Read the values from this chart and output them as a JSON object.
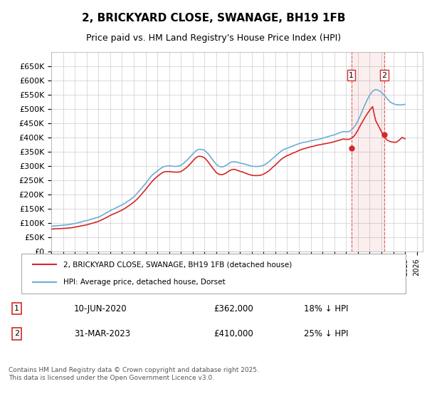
{
  "title": "2, BRICKYARD CLOSE, SWANAGE, BH19 1FB",
  "subtitle": "Price paid vs. HM Land Registry's House Price Index (HPI)",
  "ylabel": "",
  "ylim": [
    0,
    700000
  ],
  "yticks": [
    0,
    50000,
    100000,
    150000,
    200000,
    250000,
    300000,
    350000,
    400000,
    450000,
    500000,
    550000,
    600000,
    650000
  ],
  "xlim_start": 1995.0,
  "xlim_end": 2026.5,
  "hpi_color": "#6baed6",
  "price_color": "#d62728",
  "background_color": "#ffffff",
  "grid_color": "#cccccc",
  "transaction1_label": "1",
  "transaction1_date": "10-JUN-2020",
  "transaction1_price": "£362,000",
  "transaction1_hpi": "18% ↓ HPI",
  "transaction1_year": 2020.44,
  "transaction1_value": 362000,
  "transaction2_label": "2",
  "transaction2_date": "31-MAR-2023",
  "transaction2_price": "£410,000",
  "transaction2_hpi": "25% ↓ HPI",
  "transaction2_year": 2023.25,
  "transaction2_value": 410000,
  "legend_label1": "2, BRICKYARD CLOSE, SWANAGE, BH19 1FB (detached house)",
  "legend_label2": "HPI: Average price, detached house, Dorset",
  "footer": "Contains HM Land Registry data © Crown copyright and database right 2025.\nThis data is licensed under the Open Government Licence v3.0.",
  "hpi_data_x": [
    1995.0,
    1995.25,
    1995.5,
    1995.75,
    1996.0,
    1996.25,
    1996.5,
    1996.75,
    1997.0,
    1997.25,
    1997.5,
    1997.75,
    1998.0,
    1998.25,
    1998.5,
    1998.75,
    1999.0,
    1999.25,
    1999.5,
    1999.75,
    2000.0,
    2000.25,
    2000.5,
    2000.75,
    2001.0,
    2001.25,
    2001.5,
    2001.75,
    2002.0,
    2002.25,
    2002.5,
    2002.75,
    2003.0,
    2003.25,
    2003.5,
    2003.75,
    2004.0,
    2004.25,
    2004.5,
    2004.75,
    2005.0,
    2005.25,
    2005.5,
    2005.75,
    2006.0,
    2006.25,
    2006.5,
    2006.75,
    2007.0,
    2007.25,
    2007.5,
    2007.75,
    2008.0,
    2008.25,
    2008.5,
    2008.75,
    2009.0,
    2009.25,
    2009.5,
    2009.75,
    2010.0,
    2010.25,
    2010.5,
    2010.75,
    2011.0,
    2011.25,
    2011.5,
    2011.75,
    2012.0,
    2012.25,
    2012.5,
    2012.75,
    2013.0,
    2013.25,
    2013.5,
    2013.75,
    2014.0,
    2014.25,
    2014.5,
    2014.75,
    2015.0,
    2015.25,
    2015.5,
    2015.75,
    2016.0,
    2016.25,
    2016.5,
    2016.75,
    2017.0,
    2017.25,
    2017.5,
    2017.75,
    2018.0,
    2018.25,
    2018.5,
    2018.75,
    2019.0,
    2019.25,
    2019.5,
    2019.75,
    2020.0,
    2020.25,
    2020.5,
    2020.75,
    2021.0,
    2021.25,
    2021.5,
    2021.75,
    2022.0,
    2022.25,
    2022.5,
    2022.75,
    2023.0,
    2023.25,
    2023.5,
    2023.75,
    2024.0,
    2024.25,
    2024.5,
    2024.75,
    2025.0
  ],
  "hpi_data_y": [
    88000,
    89000,
    90000,
    91000,
    92000,
    93000,
    94000,
    96000,
    98000,
    100000,
    103000,
    106000,
    108000,
    111000,
    114000,
    117000,
    120000,
    125000,
    131000,
    137000,
    143000,
    148000,
    153000,
    158000,
    163000,
    169000,
    176000,
    183000,
    191000,
    202000,
    214000,
    226000,
    238000,
    252000,
    265000,
    274000,
    282000,
    290000,
    297000,
    299000,
    300000,
    299000,
    298000,
    299000,
    302000,
    310000,
    319000,
    330000,
    342000,
    352000,
    358000,
    358000,
    355000,
    345000,
    332000,
    318000,
    305000,
    298000,
    296000,
    300000,
    307000,
    313000,
    315000,
    313000,
    310000,
    308000,
    305000,
    302000,
    299000,
    298000,
    298000,
    299000,
    302000,
    308000,
    316000,
    325000,
    334000,
    343000,
    352000,
    358000,
    362000,
    366000,
    370000,
    374000,
    378000,
    381000,
    383000,
    385000,
    388000,
    390000,
    392000,
    394000,
    397000,
    400000,
    403000,
    406000,
    409000,
    413000,
    417000,
    420000,
    420000,
    420000,
    428000,
    440000,
    458000,
    480000,
    505000,
    528000,
    548000,
    562000,
    568000,
    565000,
    558000,
    547000,
    535000,
    524000,
    518000,
    515000,
    514000,
    514000,
    516000
  ],
  "price_data_x": [
    1995.0,
    1995.25,
    1995.5,
    1995.75,
    1996.0,
    1996.25,
    1996.5,
    1996.75,
    1997.0,
    1997.25,
    1997.5,
    1997.75,
    1998.0,
    1998.25,
    1998.5,
    1998.75,
    1999.0,
    1999.25,
    1999.5,
    1999.75,
    2000.0,
    2000.25,
    2000.5,
    2000.75,
    2001.0,
    2001.25,
    2001.5,
    2001.75,
    2002.0,
    2002.25,
    2002.5,
    2002.75,
    2003.0,
    2003.25,
    2003.5,
    2003.75,
    2004.0,
    2004.25,
    2004.5,
    2004.75,
    2005.0,
    2005.25,
    2005.5,
    2005.75,
    2006.0,
    2006.25,
    2006.5,
    2006.75,
    2007.0,
    2007.25,
    2007.5,
    2007.75,
    2008.0,
    2008.25,
    2008.5,
    2008.75,
    2009.0,
    2009.25,
    2009.5,
    2009.75,
    2010.0,
    2010.25,
    2010.5,
    2010.75,
    2011.0,
    2011.25,
    2011.5,
    2011.75,
    2012.0,
    2012.25,
    2012.5,
    2012.75,
    2013.0,
    2013.25,
    2013.5,
    2013.75,
    2014.0,
    2014.25,
    2014.5,
    2014.75,
    2015.0,
    2015.25,
    2015.5,
    2015.75,
    2016.0,
    2016.25,
    2016.5,
    2016.75,
    2017.0,
    2017.25,
    2017.5,
    2017.75,
    2018.0,
    2018.25,
    2018.5,
    2018.75,
    2019.0,
    2019.25,
    2019.5,
    2019.75,
    2020.0,
    2020.25,
    2020.5,
    2020.75,
    2021.0,
    2021.25,
    2021.5,
    2021.75,
    2022.0,
    2022.25,
    2022.5,
    2022.75,
    2023.0,
    2023.25,
    2023.5,
    2023.75,
    2024.0,
    2024.25,
    2024.5,
    2024.75,
    2025.0
  ],
  "price_data_y": [
    78000,
    79000,
    79500,
    80000,
    80500,
    81000,
    82000,
    83000,
    85000,
    87000,
    89000,
    91000,
    93000,
    96000,
    99000,
    102000,
    105000,
    110000,
    115000,
    120000,
    126000,
    131000,
    135000,
    140000,
    145000,
    151000,
    158000,
    165000,
    173000,
    182000,
    193000,
    205000,
    217000,
    230000,
    243000,
    254000,
    263000,
    271000,
    278000,
    280000,
    280000,
    279000,
    278000,
    278000,
    280000,
    287000,
    295000,
    305000,
    317000,
    328000,
    334000,
    333000,
    328000,
    317000,
    303000,
    289000,
    276000,
    270000,
    269000,
    273000,
    280000,
    286000,
    288000,
    285000,
    281000,
    278000,
    274000,
    270000,
    267000,
    266000,
    266000,
    267000,
    271000,
    277000,
    284000,
    294000,
    303000,
    313000,
    323000,
    330000,
    336000,
    340000,
    345000,
    349000,
    354000,
    358000,
    361000,
    364000,
    367000,
    369000,
    372000,
    374000,
    376000,
    378000,
    380000,
    382000,
    385000,
    388000,
    391000,
    394000,
    393000,
    393000,
    398000,
    408000,
    425000,
    445000,
    463000,
    480000,
    495000,
    508000,
    460000,
    440000,
    420000,
    400000,
    390000,
    385000,
    383000,
    383000,
    390000,
    400000,
    395000
  ]
}
